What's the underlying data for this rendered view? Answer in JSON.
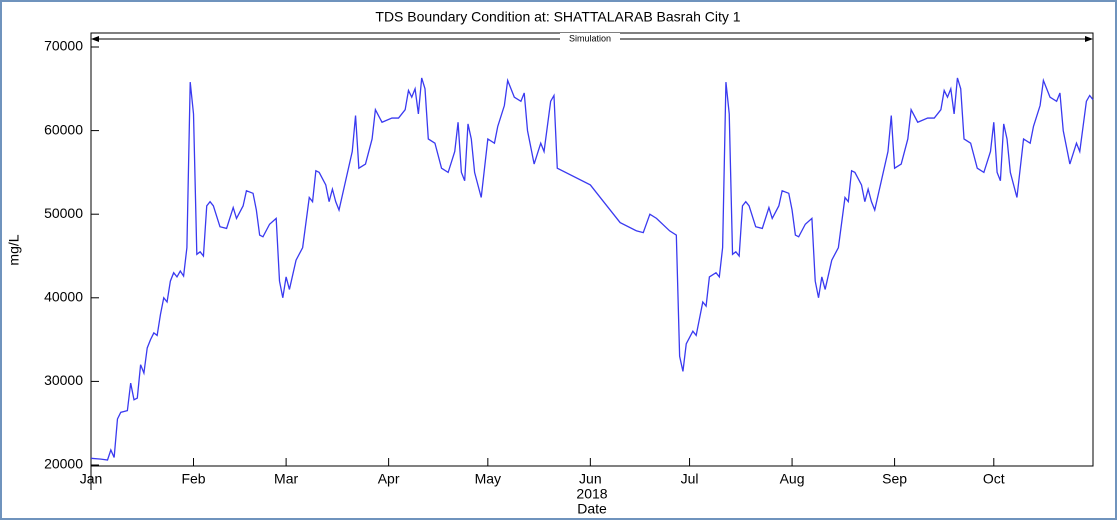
{
  "chart_data": {
    "type": "line",
    "title": "TDS Boundary Condition at: SHATTALARAB Basrah City 1",
    "annotation": "Simulation",
    "ylabel": "mg/L",
    "xlabel": "Date",
    "x_year_label": "2018",
    "color": "#3a3af0",
    "xlim": [
      "2018-01-01",
      "2018-10-31"
    ],
    "xticks": [
      {
        "value": "2018-01-01",
        "label": "Jan"
      },
      {
        "value": "2018-02-01",
        "label": "Feb"
      },
      {
        "value": "2018-03-01",
        "label": "Mar"
      },
      {
        "value": "2018-04-01",
        "label": "Apr"
      },
      {
        "value": "2018-05-01",
        "label": "May"
      },
      {
        "value": "2018-06-01",
        "label": "Jun"
      },
      {
        "value": "2018-07-01",
        "label": "Jul"
      },
      {
        "value": "2018-08-01",
        "label": "Aug"
      },
      {
        "value": "2018-09-01",
        "label": "Sep"
      },
      {
        "value": "2018-10-01",
        "label": "Oct"
      }
    ],
    "ylim": [
      20000,
      70000
    ],
    "yticks": [
      20000,
      30000,
      40000,
      50000,
      60000,
      70000
    ],
    "x": [
      "2018-01-01",
      "2018-01-04",
      "2018-01-06",
      "2018-01-07",
      "2018-01-08",
      "2018-01-09",
      "2018-01-10",
      "2018-01-12",
      "2018-01-13",
      "2018-01-14",
      "2018-01-15",
      "2018-01-16",
      "2018-01-17",
      "2018-01-18",
      "2018-01-19",
      "2018-01-20",
      "2018-01-21",
      "2018-01-22",
      "2018-01-23",
      "2018-01-24",
      "2018-01-25",
      "2018-01-26",
      "2018-01-27",
      "2018-01-28",
      "2018-01-29",
      "2018-01-30",
      "2018-01-31",
      "2018-02-01",
      "2018-02-02",
      "2018-02-03",
      "2018-02-04",
      "2018-02-05",
      "2018-02-06",
      "2018-02-07",
      "2018-02-09",
      "2018-02-11",
      "2018-02-13",
      "2018-02-14",
      "2018-02-16",
      "2018-02-17",
      "2018-02-19",
      "2018-02-20",
      "2018-02-21",
      "2018-02-22",
      "2018-02-24",
      "2018-02-26",
      "2018-02-27",
      "2018-02-28",
      "2018-03-01",
      "2018-03-02",
      "2018-03-04",
      "2018-03-06",
      "2018-03-08",
      "2018-03-09",
      "2018-03-10",
      "2018-03-11",
      "2018-03-13",
      "2018-03-14",
      "2018-03-15",
      "2018-03-16",
      "2018-03-17",
      "2018-03-19",
      "2018-03-21",
      "2018-03-22",
      "2018-03-23",
      "2018-03-25",
      "2018-03-27",
      "2018-03-28",
      "2018-03-30",
      "2018-04-02",
      "2018-04-04",
      "2018-04-06",
      "2018-04-07",
      "2018-04-08",
      "2018-04-09",
      "2018-04-10",
      "2018-04-11",
      "2018-04-12",
      "2018-04-13",
      "2018-04-15",
      "2018-04-17",
      "2018-04-19",
      "2018-04-21",
      "2018-04-22",
      "2018-04-23",
      "2018-04-24",
      "2018-04-25",
      "2018-04-26",
      "2018-04-27",
      "2018-04-29",
      "2018-05-01",
      "2018-05-03",
      "2018-05-04",
      "2018-05-06",
      "2018-05-07",
      "2018-05-09",
      "2018-05-11",
      "2018-05-12",
      "2018-05-13",
      "2018-05-15",
      "2018-05-17",
      "2018-05-18",
      "2018-05-20",
      "2018-05-21",
      "2018-05-22",
      "2018-06-01",
      "2018-06-05",
      "2018-06-10",
      "2018-06-15",
      "2018-06-17",
      "2018-06-19",
      "2018-06-21",
      "2018-06-25",
      "2018-06-27",
      "2018-06-28",
      "2018-06-29",
      "2018-06-30",
      "2018-07-02",
      "2018-07-03",
      "2018-07-05",
      "2018-07-06",
      "2018-07-07",
      "2018-07-09",
      "2018-07-10",
      "2018-07-11",
      "2018-07-12",
      "2018-07-13",
      "2018-07-14",
      "2018-07-15",
      "2018-07-16",
      "2018-07-17",
      "2018-07-18",
      "2018-07-19",
      "2018-07-21",
      "2018-07-23",
      "2018-07-25",
      "2018-07-26",
      "2018-07-28",
      "2018-07-29",
      "2018-07-31",
      "2018-08-01",
      "2018-08-02",
      "2018-08-03",
      "2018-08-05",
      "2018-08-07",
      "2018-08-08",
      "2018-08-09",
      "2018-08-10",
      "2018-08-11",
      "2018-08-13",
      "2018-08-15",
      "2018-08-17",
      "2018-08-18",
      "2018-08-19",
      "2018-08-20",
      "2018-08-22",
      "2018-08-23",
      "2018-08-24",
      "2018-08-25",
      "2018-08-26",
      "2018-08-28",
      "2018-08-30",
      "2018-08-31",
      "2018-09-01",
      "2018-09-03",
      "2018-09-05",
      "2018-09-06",
      "2018-09-08",
      "2018-09-11",
      "2018-09-13",
      "2018-09-15",
      "2018-09-16",
      "2018-09-17",
      "2018-09-18",
      "2018-09-19",
      "2018-09-20",
      "2018-09-21",
      "2018-09-22",
      "2018-09-24",
      "2018-09-26",
      "2018-09-28",
      "2018-09-30",
      "2018-10-01",
      "2018-10-02",
      "2018-10-03",
      "2018-10-04",
      "2018-10-05",
      "2018-10-06",
      "2018-10-08",
      "2018-10-10",
      "2018-10-12",
      "2018-10-13",
      "2018-10-15",
      "2018-10-16",
      "2018-10-18",
      "2018-10-20",
      "2018-10-21",
      "2018-10-22",
      "2018-10-24",
      "2018-10-26",
      "2018-10-27",
      "2018-10-29",
      "2018-10-30",
      "2018-10-31"
    ],
    "values": [
      20800,
      20700,
      20600,
      21800,
      20900,
      25500,
      26300,
      26500,
      29800,
      27800,
      28000,
      32000,
      31000,
      34000,
      35000,
      35800,
      35500,
      38000,
      40000,
      39500,
      42000,
      43000,
      42500,
      43200,
      42600,
      46000,
      65800,
      62000,
      45200,
      45500,
      45000,
      51000,
      51500,
      51000,
      48500,
      48300,
      50800,
      49500,
      51000,
      52800,
      52500,
      50500,
      47500,
      47300,
      48800,
      49500,
      42000,
      40000,
      42500,
      41000,
      44500,
      46000,
      52000,
      51500,
      55200,
      55000,
      53500,
      51500,
      53000,
      51500,
      50500,
      54000,
      57500,
      61800,
      55500,
      56000,
      59000,
      62500,
      61000,
      61500,
      61500,
      62500,
      64800,
      64000,
      65000,
      62000,
      66300,
      65000,
      59000,
      58500,
      55500,
      55000,
      57500,
      61000,
      55000,
      54000,
      60800,
      59000,
      55000,
      52000,
      59000,
      58500,
      60500,
      63000,
      66000,
      64000,
      63500,
      64500,
      60000,
      56000,
      58500,
      57500,
      63500,
      64200,
      55500,
      53500,
      51500,
      49000,
      48000,
      47800,
      50000,
      49500,
      48000,
      47500,
      33000,
      31200,
      34500,
      36000,
      35500,
      39500,
      39000,
      42500,
      43000,
      42500,
      46000,
      65800,
      62000,
      45200,
      45500,
      45000,
      51000,
      51500,
      51000,
      48500,
      48300,
      50800,
      49500,
      51000,
      52800,
      52500,
      50500,
      47500,
      47300,
      48800,
      49500,
      42000,
      40000,
      42500,
      41000,
      44500,
      46000,
      52000,
      51500,
      55200,
      55000,
      53500,
      51500,
      53000,
      51500,
      50500,
      54000,
      57500,
      61800,
      55500,
      56000,
      59000,
      62500,
      61000,
      61500,
      61500,
      62500,
      64800,
      64000,
      65000,
      62000,
      66300,
      65000,
      59000,
      58500,
      55500,
      55000,
      57500,
      61000,
      55000,
      54000,
      60800,
      59000,
      55000,
      52000,
      59000,
      58500,
      60500,
      63000,
      66000,
      64000,
      63500,
      64500,
      60000,
      56000,
      58500,
      57500,
      63500,
      64200,
      63700
    ]
  }
}
